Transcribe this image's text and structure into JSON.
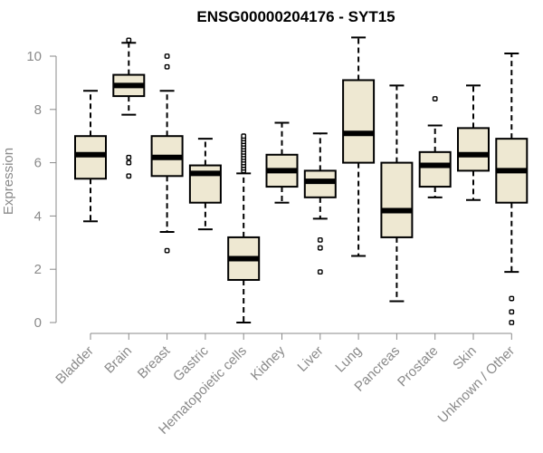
{
  "chart_data": {
    "type": "boxplot",
    "title": "ENSG00000204176 - SYT15",
    "xlabel": "",
    "ylabel": "Expression",
    "ylim": [
      0,
      10
    ],
    "yticks": [
      0,
      2,
      4,
      6,
      8,
      10
    ],
    "categories": [
      "Bladder",
      "Brain",
      "Breast",
      "Gastric",
      "Hematopoietic cells",
      "Kidney",
      "Liver",
      "Lung",
      "Pancreas",
      "Prostate",
      "Skin",
      "Unknown / Other"
    ],
    "boxes": [
      {
        "category": "Bladder",
        "whisker_low": 3.8,
        "q1": 5.4,
        "median": 6.3,
        "q3": 7.0,
        "whisker_high": 8.7,
        "outliers": []
      },
      {
        "category": "Brain",
        "whisker_low": 7.8,
        "q1": 8.5,
        "median": 8.9,
        "q3": 9.3,
        "whisker_high": 10.5,
        "outliers": [
          10.6,
          6.2,
          6.0,
          5.5
        ]
      },
      {
        "category": "Breast",
        "whisker_low": 3.4,
        "q1": 5.5,
        "median": 6.2,
        "q3": 7.0,
        "whisker_high": 8.7,
        "outliers": [
          10.0,
          9.6,
          2.7
        ]
      },
      {
        "category": "Gastric",
        "whisker_low": 3.5,
        "q1": 4.5,
        "median": 5.6,
        "q3": 5.9,
        "whisker_high": 6.9,
        "outliers": []
      },
      {
        "category": "Hematopoietic cells",
        "whisker_low": 0.0,
        "q1": 1.6,
        "median": 2.4,
        "q3": 3.2,
        "whisker_high": 5.6,
        "outliers": [
          5.7,
          5.8,
          5.9,
          6.0,
          6.1,
          6.2,
          6.3,
          6.4,
          6.5,
          6.6,
          6.7,
          6.8,
          6.9,
          7.0
        ]
      },
      {
        "category": "Kidney",
        "whisker_low": 4.5,
        "q1": 5.1,
        "median": 5.7,
        "q3": 6.3,
        "whisker_high": 7.5,
        "outliers": []
      },
      {
        "category": "Liver",
        "whisker_low": 3.9,
        "q1": 4.7,
        "median": 5.3,
        "q3": 5.7,
        "whisker_high": 7.1,
        "outliers": [
          3.1,
          2.8,
          1.9
        ]
      },
      {
        "category": "Lung",
        "whisker_low": 2.5,
        "q1": 6.0,
        "median": 7.1,
        "q3": 9.1,
        "whisker_high": 10.7,
        "outliers": []
      },
      {
        "category": "Pancreas",
        "whisker_low": 0.8,
        "q1": 3.2,
        "median": 4.2,
        "q3": 6.0,
        "whisker_high": 8.9,
        "outliers": []
      },
      {
        "category": "Prostate",
        "whisker_low": 4.7,
        "q1": 5.1,
        "median": 5.9,
        "q3": 6.4,
        "whisker_high": 7.4,
        "outliers": [
          8.4
        ]
      },
      {
        "category": "Skin",
        "whisker_low": 4.6,
        "q1": 5.7,
        "median": 6.3,
        "q3": 7.3,
        "whisker_high": 8.9,
        "outliers": []
      },
      {
        "category": "Unknown / Other",
        "whisker_low": 1.9,
        "q1": 4.5,
        "median": 5.7,
        "q3": 6.9,
        "whisker_high": 10.1,
        "outliers": [
          0.9,
          0.4,
          0.0
        ]
      }
    ],
    "box_fill": "#eee8d2",
    "box_stroke": "#000000",
    "axis_color": "#8a8a8a",
    "grid": false,
    "legend": false
  }
}
